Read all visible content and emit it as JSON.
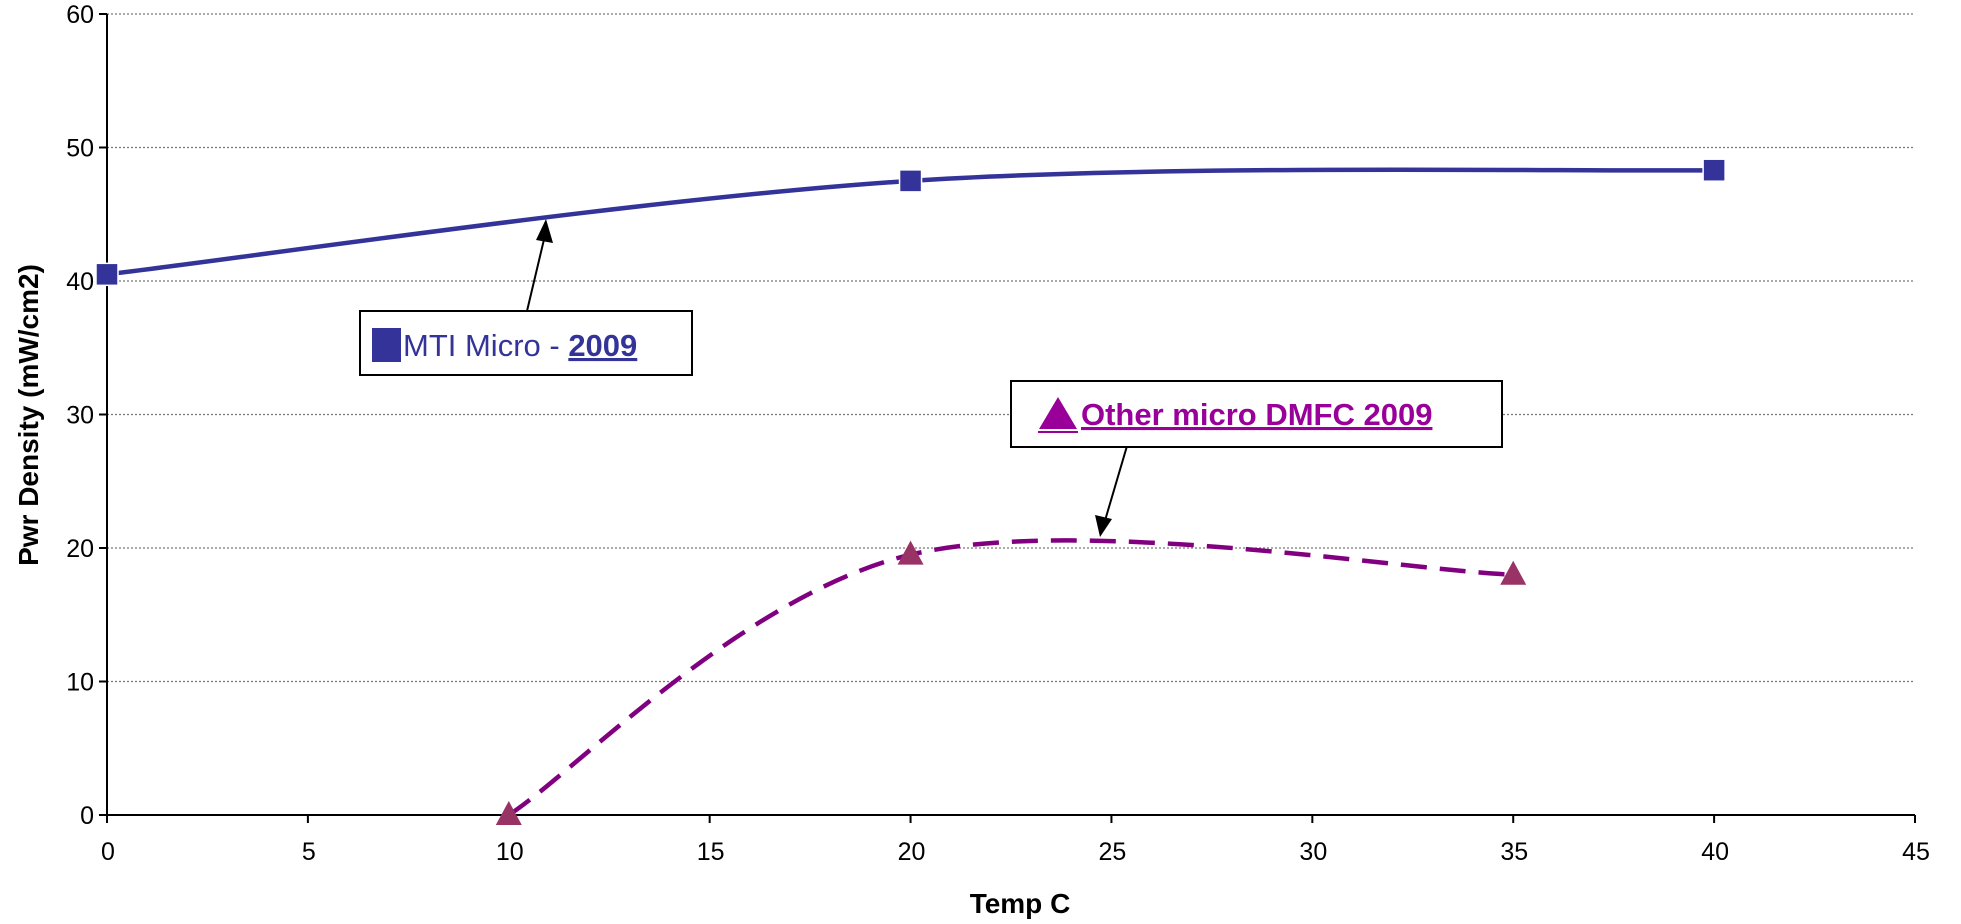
{
  "chart_data": {
    "type": "line",
    "title": "",
    "xlabel": "Temp C",
    "ylabel": "Pwr Density (mW/cm2)",
    "xlim": [
      0,
      45
    ],
    "ylim": [
      0,
      60
    ],
    "x_ticks": [
      0,
      5,
      10,
      15,
      20,
      25,
      30,
      35,
      40,
      45
    ],
    "y_ticks": [
      0,
      10,
      20,
      30,
      40,
      50,
      60
    ],
    "grid": "horizontal dotted",
    "series": [
      {
        "name": "MTI Micro - 2009",
        "style": "solid",
        "marker": "square",
        "color": "#333399",
        "x": [
          0,
          20,
          40
        ],
        "y": [
          40.5,
          47.5,
          48.3
        ]
      },
      {
        "name": "Other micro DMFC 2009",
        "style": "dashed",
        "marker": "triangle",
        "color": "#800080",
        "marker_color": "#993366",
        "x": [
          10,
          20,
          35
        ],
        "y": [
          0,
          19.5,
          18
        ]
      }
    ],
    "annotations": [
      {
        "prefix": "MTI Micro - ",
        "emphasis": "2009",
        "series": 0
      },
      {
        "prefix": "",
        "emphasis": "Other micro DMFC 2009",
        "series": 1
      }
    ]
  }
}
